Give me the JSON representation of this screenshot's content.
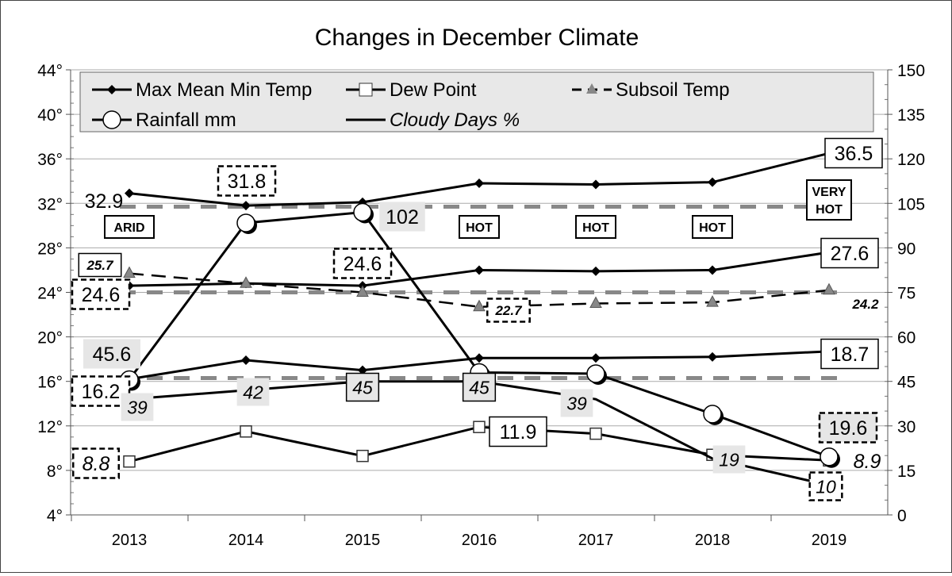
{
  "chart_data": {
    "type": "line",
    "title": "Changes in December Climate",
    "categories": [
      "2013",
      "2014",
      "2015",
      "2016",
      "2017",
      "2018",
      "2019"
    ],
    "y_left": {
      "range": [
        4,
        44
      ],
      "ticks": [
        4,
        8,
        12,
        16,
        20,
        24,
        28,
        32,
        36,
        40,
        44
      ],
      "suffix": "°"
    },
    "y_right": {
      "range": [
        0,
        150
      ],
      "ticks": [
        0,
        15,
        30,
        45,
        60,
        75,
        90,
        105,
        120,
        135,
        150
      ]
    },
    "grid": true,
    "legend_placement": "top",
    "series": [
      {
        "key": "max",
        "legend": "Max Mean Min Temp",
        "axis": "left",
        "marker": "diamond",
        "dash": false,
        "values": [
          32.9,
          31.8,
          32.1,
          33.8,
          33.7,
          33.9,
          36.5
        ]
      },
      {
        "key": "mean",
        "axis": "left",
        "marker": "diamond",
        "dash": false,
        "values": [
          24.6,
          24.8,
          24.6,
          26.0,
          25.9,
          26.0,
          27.6
        ]
      },
      {
        "key": "min",
        "axis": "left",
        "marker": "diamond",
        "dash": false,
        "values": [
          16.2,
          17.9,
          17.0,
          18.1,
          18.1,
          18.2,
          18.7
        ]
      },
      {
        "key": "dew",
        "legend": "Dew Point",
        "axis": "left",
        "marker": "square",
        "dash": false,
        "values": [
          8.8,
          11.5,
          9.3,
          11.9,
          11.3,
          9.4,
          8.9
        ]
      },
      {
        "key": "subsoil",
        "legend": "Subsoil Temp",
        "axis": "left",
        "marker": "triangle",
        "dash": true,
        "values": [
          25.7,
          24.8,
          24.0,
          22.7,
          23.0,
          23.1,
          24.2
        ]
      },
      {
        "key": "rain",
        "legend": "Rainfall mm",
        "axis": "right",
        "marker": "circle",
        "dash": false,
        "values": [
          45.6,
          98.4,
          102,
          48,
          47.6,
          34,
          19.6
        ]
      },
      {
        "key": "cloud",
        "legend": "Cloudy Days %",
        "axis": "right",
        "marker": "none",
        "dash": false,
        "values": [
          39,
          42,
          45,
          45,
          39,
          19,
          10
        ]
      }
    ],
    "reference_lines_left": [
      31.7,
      24.0,
      16.3
    ],
    "annotations": [
      {
        "text": "32.9",
        "style": "plain"
      },
      {
        "text": "31.8",
        "style": "dashed"
      },
      {
        "text": "102",
        "style": "shaded"
      },
      {
        "text": "36.5",
        "style": "box"
      },
      {
        "text": "25.7",
        "style": "box-bold-italic"
      },
      {
        "text": "24.6",
        "style": "dashed"
      },
      {
        "text": "24.6",
        "style": "dashed"
      },
      {
        "text": "22.7",
        "style": "dashed-bold-italic"
      },
      {
        "text": "27.6",
        "style": "box"
      },
      {
        "text": "24.2",
        "style": "plain-bold-italic"
      },
      {
        "text": "45.6",
        "style": "shaded"
      },
      {
        "text": "16.2",
        "style": "dashed"
      },
      {
        "text": "18.7",
        "style": "box"
      },
      {
        "text": "39",
        "style": "shaded-italic"
      },
      {
        "text": "42",
        "style": "shaded-italic"
      },
      {
        "text": "45",
        "style": "shaded-box-italic"
      },
      {
        "text": "45",
        "style": "shaded-box-italic"
      },
      {
        "text": "39",
        "style": "shaded-italic"
      },
      {
        "text": "19",
        "style": "shaded-italic"
      },
      {
        "text": "10",
        "style": "dashed-italic"
      },
      {
        "text": "8.8",
        "style": "dashed-italic"
      },
      {
        "text": "11.9",
        "style": "box"
      },
      {
        "text": "8.9",
        "style": "plain-italic"
      },
      {
        "text": "19.6",
        "style": "dashed-shaded"
      }
    ],
    "condition_labels": [
      "ARID",
      "HOT",
      "HOT",
      "HOT",
      "VERY HOT"
    ]
  }
}
